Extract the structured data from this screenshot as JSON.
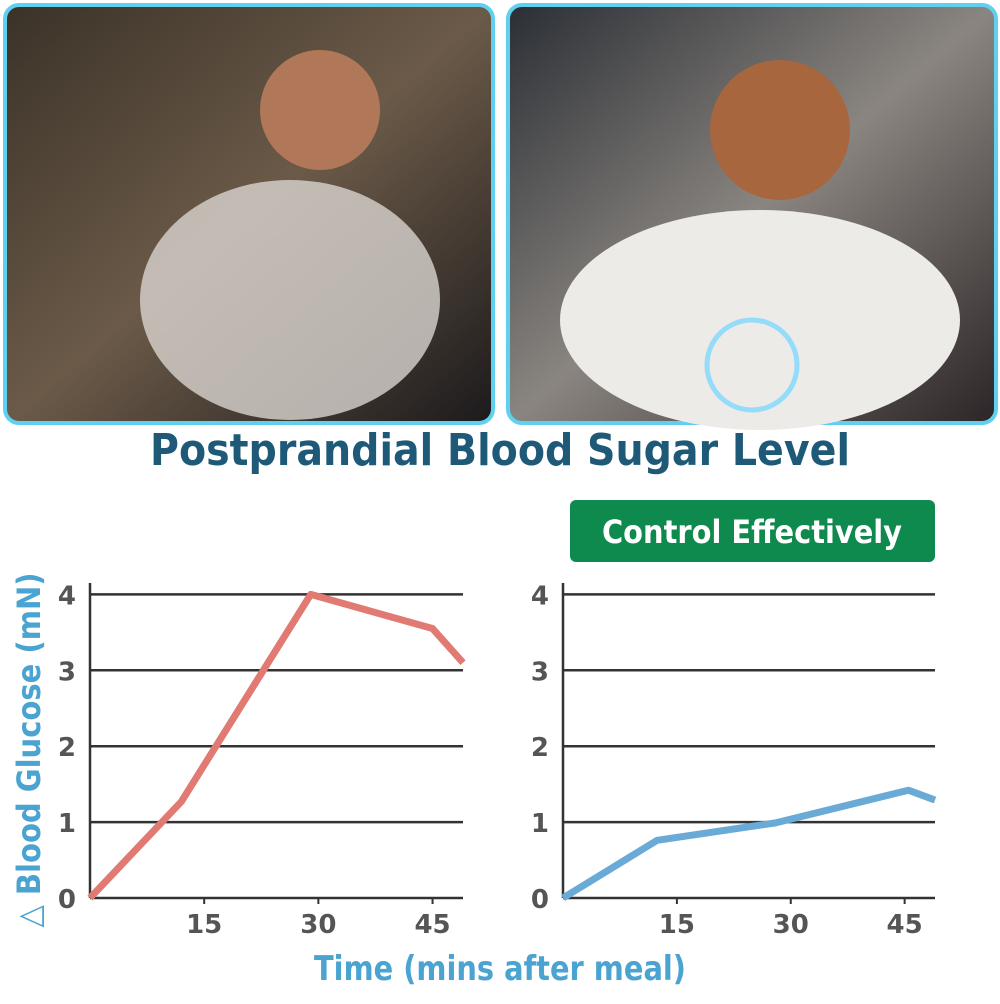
{
  "title": "Postprandial Blood Sugar Level",
  "badge": "Control Effectively",
  "ylabel": "△ Blood Glucose (mN)",
  "xlabel": "Time (mins after meal)",
  "chart_data": [
    {
      "type": "line",
      "x": [
        0,
        12,
        29,
        45,
        49
      ],
      "series": [
        {
          "color": "#e07a72",
          "values": [
            0,
            1.27,
            4,
            3.55,
            3.1
          ]
        }
      ],
      "xlim": [
        0,
        49
      ],
      "xticks": [
        15,
        30,
        45
      ],
      "ylim": [
        0,
        4.15
      ],
      "yticks": [
        0,
        1,
        2,
        3,
        4
      ],
      "grid": true
    },
    {
      "type": "line",
      "x": [
        0,
        12.4,
        28,
        45.5,
        49
      ],
      "series": [
        {
          "color": "#6aaad6",
          "values": [
            0,
            0.76,
            0.99,
            1.42,
            1.29
          ]
        }
      ],
      "xlim": [
        0,
        49
      ],
      "xticks": [
        15,
        30,
        45
      ],
      "ylim": [
        0,
        4.15
      ],
      "yticks": [
        0,
        1,
        2,
        3,
        4
      ],
      "grid": true
    }
  ]
}
